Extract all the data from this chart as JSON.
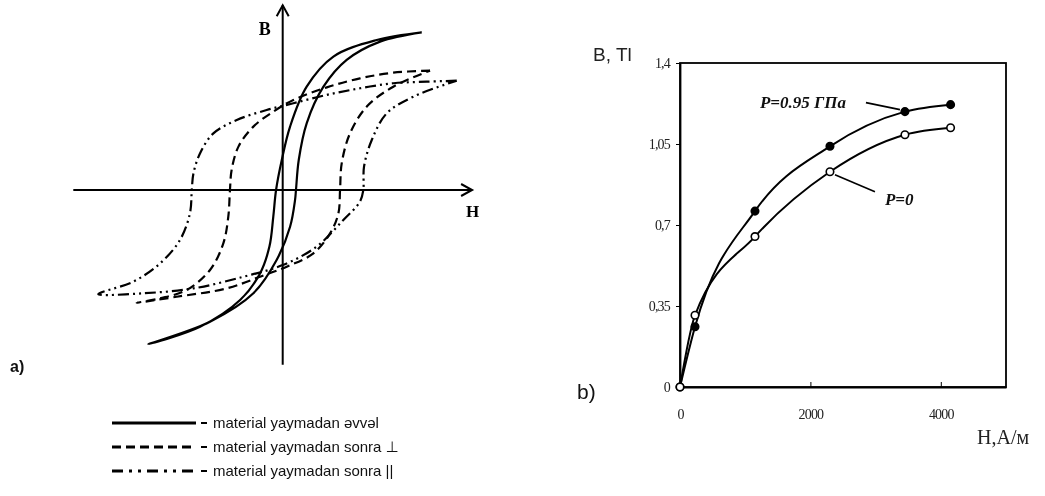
{
  "chart_data": [
    {
      "type": "other",
      "xlabel": "H",
      "ylabel": "B",
      "annotations": [
        "a)",
        "material yaymadan əvvəl",
        "material yaymadan sonra ⊥",
        "material yaymadan sonra ||"
      ]
    },
    {
      "type": "line",
      "xlabel": "H,A/м",
      "ylabel": "B, Tl",
      "annotations": [
        "b)"
      ],
      "marker": "circle",
      "xlim": [
        0,
        5000
      ],
      "xticks": [
        0,
        2000,
        4000
      ],
      "ylim": [
        0,
        1.4
      ],
      "yticks": [
        0,
        {
          "value": 0.35,
          "label": "0,35"
        },
        {
          "value": 0.7,
          "label": "0,7"
        },
        {
          "value": 1.05,
          "label": "1,05"
        },
        {
          "value": 1.4,
          "label": "1,4"
        }
      ],
      "series": [
        {
          "name": "P=0.95 ГПа",
          "color": "#000000",
          "x": [
            0,
            230,
            1150,
            2300,
            3450,
            4150
          ],
          "values": [
            0,
            0.26,
            0.76,
            1.04,
            1.19,
            1.22
          ]
        },
        {
          "name": "P=0",
          "color": "#000000",
          "x": [
            0,
            230,
            1150,
            2300,
            3450,
            4150
          ],
          "values": [
            0,
            0.31,
            0.65,
            0.93,
            1.09,
            1.12
          ]
        }
      ]
    }
  ]
}
